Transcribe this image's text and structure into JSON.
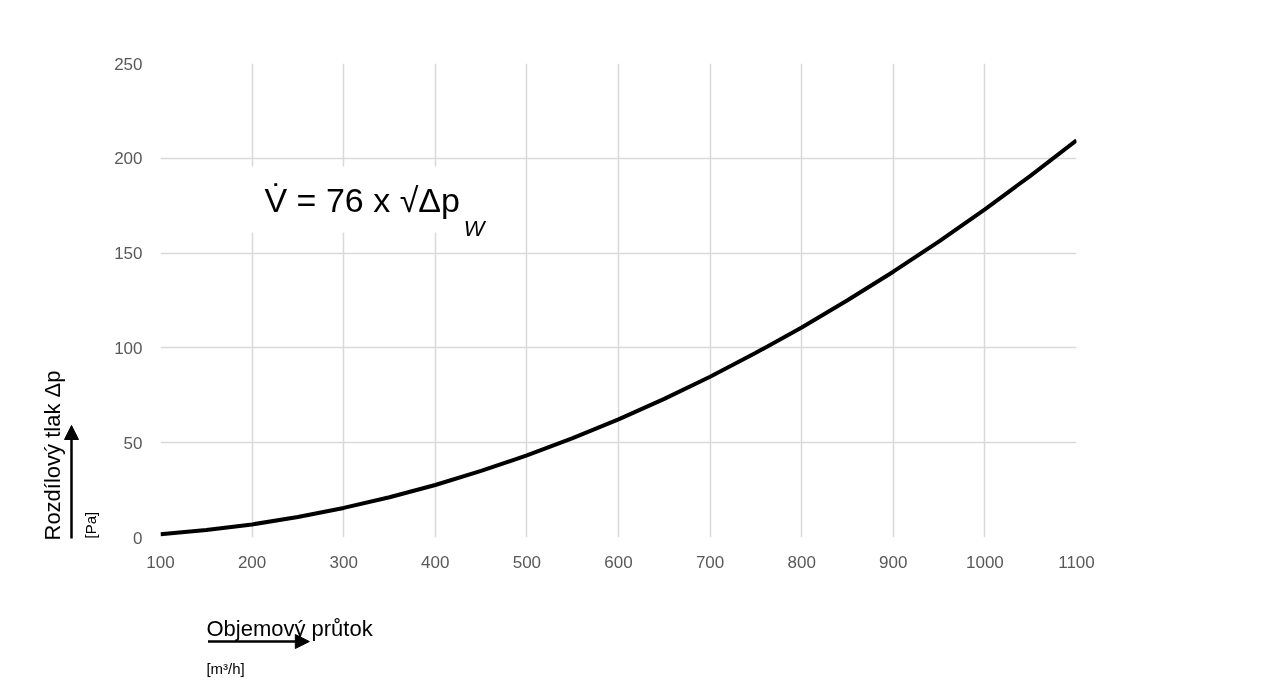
{
  "chart_data": {
    "type": "line",
    "xlabel": "Objemový průtok",
    "ylabel": "Rozdílový tlak Δp",
    "annotations": [
      "V̇ = 76 x √Δp$_{W}$",
      "[m³/h]",
      "[Pa]"
    ],
    "x": [
      100,
      150,
      200,
      250,
      300,
      350,
      400,
      450,
      500,
      550,
      600,
      650,
      700,
      750,
      800,
      850,
      900,
      950,
      1000,
      1050,
      1100
    ],
    "series": [
      {
        "color": "#000000",
        "values": [
          1.7,
          3.9,
          6.9,
          10.8,
          15.6,
          21.2,
          27.7,
          35.1,
          43.3,
          52.4,
          62.3,
          73.1,
          84.8,
          97.4,
          110.8,
          125.1,
          140.2,
          156.2,
          173.1,
          190.9,
          209.5
        ]
      }
    ],
    "xlim": [
      100,
      1100
    ],
    "xticks": [
      100,
      200,
      300,
      400,
      500,
      600,
      700,
      800,
      900,
      1000,
      1100
    ],
    "ylim": [
      0,
      250
    ],
    "yticks": [
      0,
      50,
      100,
      150,
      200,
      250
    ],
    "grid": true,
    "marker": "none",
    "line_style": "solid"
  }
}
